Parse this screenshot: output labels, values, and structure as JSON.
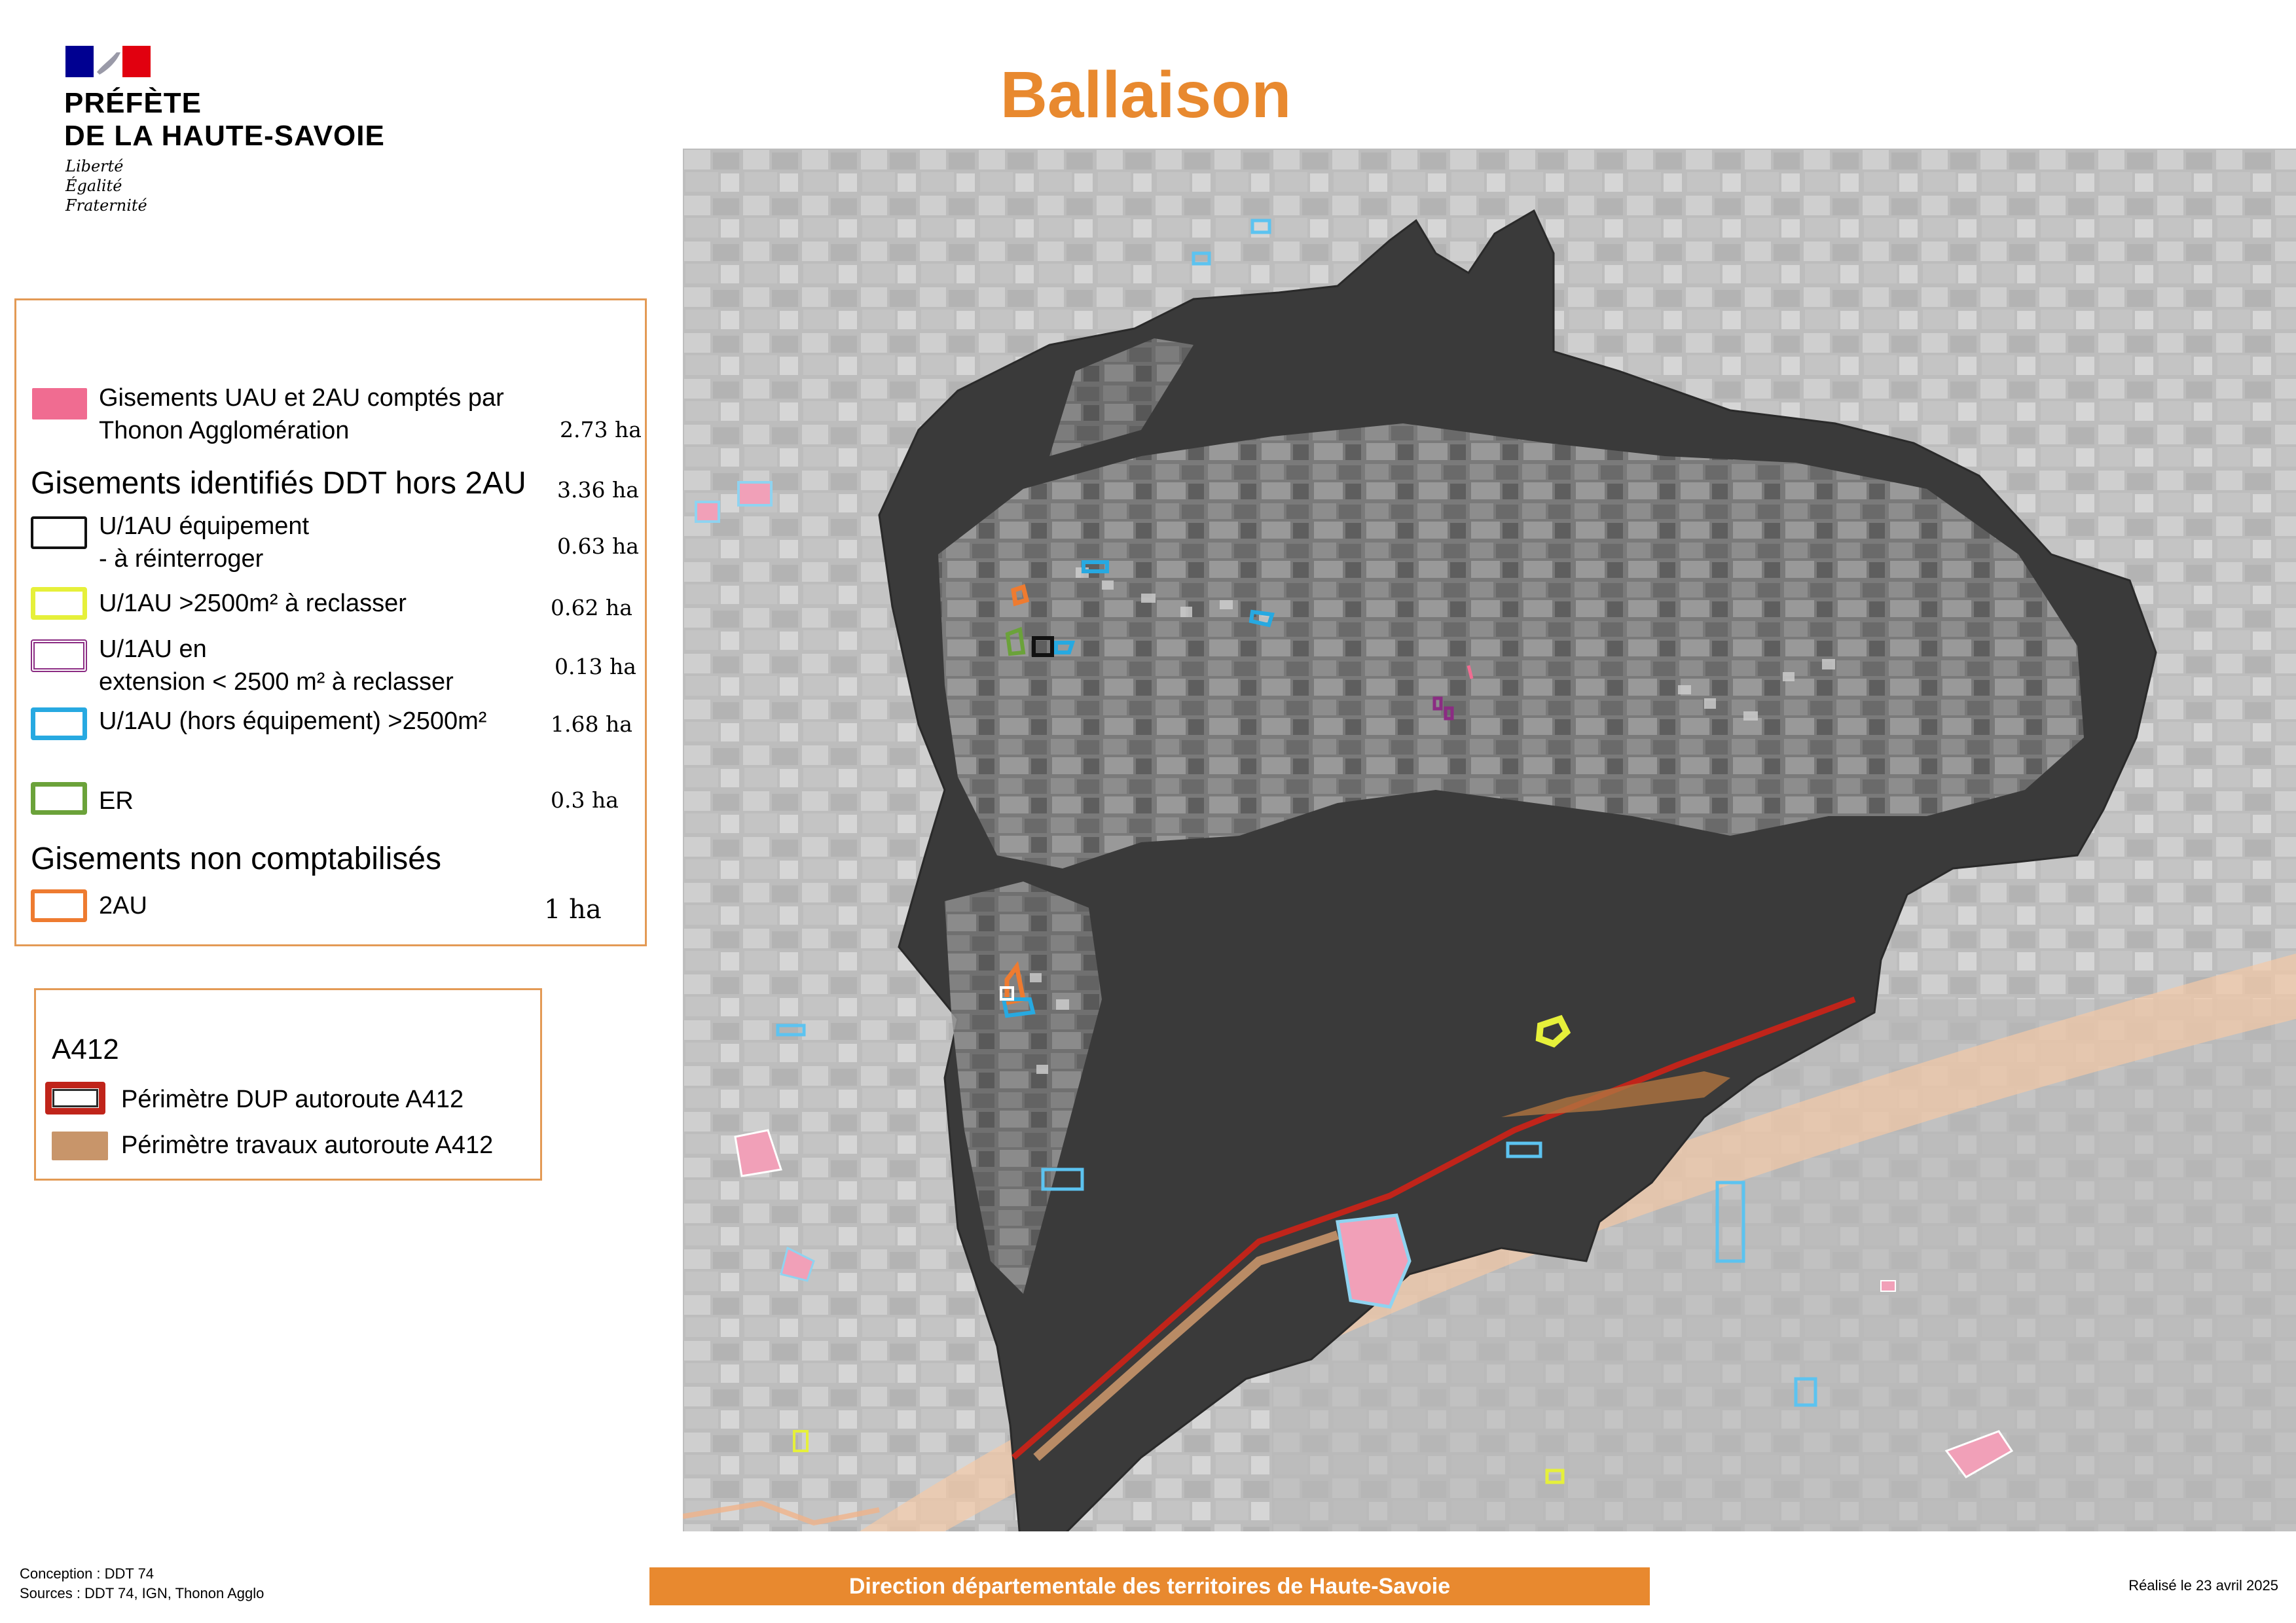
{
  "header": {
    "logo_line1": "PRÉFÈTE",
    "logo_line2": "DE LA HAUTE-SAVOIE",
    "motto": [
      "Liberté",
      "Égalité",
      "Fraternité"
    ],
    "logo_icon": "marianne-flag-icon",
    "title": "Ballaison"
  },
  "legend_main": {
    "item_thonon": {
      "label_line1": "Gisements UAU et 2AU comptés par",
      "label_line2": "Thonon Agglomération",
      "value": "2.73 ha",
      "color": "#f06c91"
    },
    "section_ddt": {
      "title": "Gisements identifiés DDT hors 2AU",
      "value": "3.36 ha"
    },
    "item_equipement": {
      "label_line1": "U/1AU équipement",
      "label_line2": "- à réinterroger",
      "value": "0.63 ha",
      "color": "#111111"
    },
    "item_reclasser": {
      "label": "U/1AU >2500m²  à reclasser",
      "value": "0.62 ha",
      "color": "#e6f03a"
    },
    "item_extension": {
      "label_line1": "U/1AU en",
      "label_line2": "extension  < 2500 m² à reclasser",
      "value": "0.13 ha",
      "color": "#8b2c83"
    },
    "item_hors_equipement": {
      "label": "U/1AU (hors équipement) >2500m²",
      "value": "1.68 ha",
      "color": "#27a9e1"
    },
    "item_er": {
      "label": "ER",
      "value": "0.3 ha",
      "color": "#6ba23a"
    },
    "section_non": {
      "title": "Gisements non comptabilisés"
    },
    "item_2au": {
      "label": "2AU",
      "value": "1 ha",
      "color": "#ee7b30"
    }
  },
  "legend_a412": {
    "title": "A412",
    "item_dup": {
      "label": "Périmètre DUP autoroute A412",
      "color": "#c0241a"
    },
    "item_travaux": {
      "label": "Périmètre travaux autoroute A412",
      "color": "#c8956a"
    }
  },
  "footer": {
    "conception": "Conception : DDT 74",
    "sources": "Sources : DDT 74, IGN, Thonon Agglo",
    "center": "Direction départementale des territoires de Haute-Savoie",
    "date": "Réalisé le 23 avril 2025"
  }
}
